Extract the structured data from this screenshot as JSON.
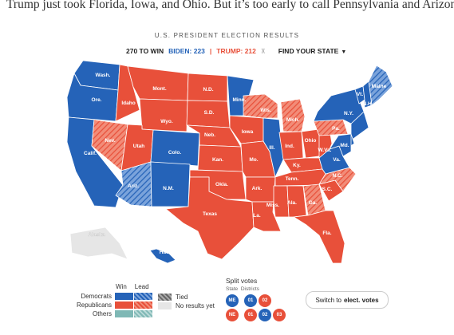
{
  "headline": "Trump just took Florida, Iowa, and Ohio. But it’s too early to call Pennsylvania and Arizona.",
  "subtitle": "U.S. PRESIDENT ELECTION RESULTS",
  "status": {
    "target_label": "270 TO WIN",
    "biden_label": "BIDEN: 223",
    "separator": "|",
    "trump_label": "TRUMP: 212",
    "target_icon": "ballot-icon",
    "finder_label": "FIND YOUR STATE",
    "finder_icon": "caret-down-icon"
  },
  "colors": {
    "democrat": "#2563b8",
    "republican": "#e8503a",
    "others": "#7fb8b5",
    "tied": "#666666",
    "no_results": "#e6e6e6"
  },
  "states": {
    "Wash.": "D",
    "Ore.": "D",
    "Calif.": "D",
    "Nev.": "RL",
    "Idaho": "R",
    "Mont.": "R",
    "Wyo.": "R",
    "Utah": "R",
    "Colo.": "D",
    "Ariz.": "DL",
    "N.M.": "D",
    "N.D.": "R",
    "S.D.": "R",
    "Neb.": "R",
    "Kan.": "R",
    "Okla.": "R",
    "Texas": "R",
    "Minn.": "D",
    "Iowa": "R",
    "Mo.": "R",
    "Ark.": "R",
    "La.": "R",
    "Wis.": "RL",
    "Ill.": "D",
    "Mich.": "RL",
    "Ind.": "R",
    "Ohio": "R",
    "Ky.": "R",
    "Tenn.": "R",
    "Miss.": "R",
    "Ala.": "R",
    "Ga.": "RL",
    "Fla.": "R",
    "S.C.": "R",
    "N.C.": "RL",
    "Va.": "D",
    "W.Va.": "R",
    "Pa.": "RL",
    "N.Y.": "D",
    "Maine": "DL",
    "Vt.": "D",
    "N.H.": "D",
    "Md.": "D",
    "Alaska": "N",
    "Hawaii": "D"
  },
  "legend": {
    "win_label": "Win",
    "lead_label": "Lead",
    "democrats": "Democrats",
    "republicans": "Republicans",
    "others": "Others",
    "tied": "Tied",
    "no_results": "No results yet"
  },
  "split_votes": {
    "title": "Split votes",
    "state_label": "State",
    "districts_label": "Districts",
    "row1": [
      "ME",
      "01",
      "02"
    ],
    "row2": [
      "NE",
      "01",
      "02",
      "03"
    ]
  },
  "switch": {
    "prefix": "Switch to",
    "emph": "elect. votes"
  }
}
